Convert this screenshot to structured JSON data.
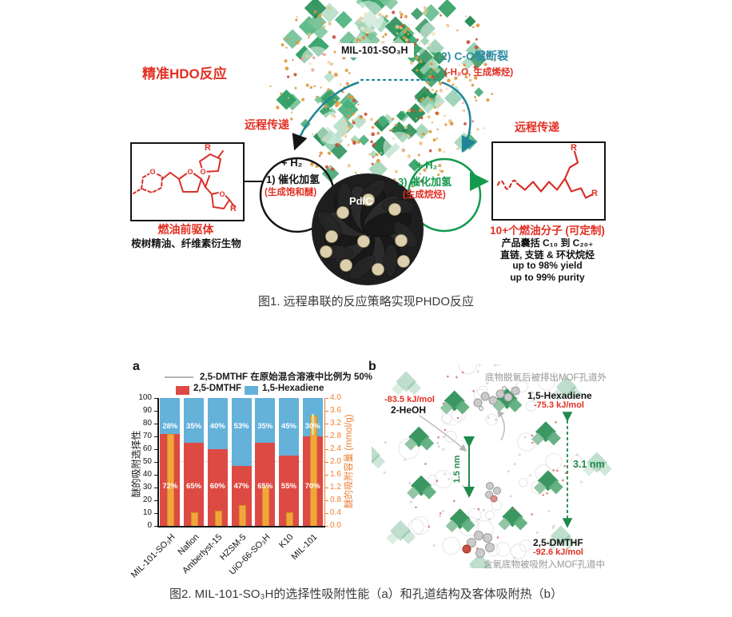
{
  "figure1": {
    "caption": "图1.  远程串联的反应策略实现PHDO反应",
    "labels": {
      "hdo_title": "精准HDO反应",
      "mof_label": "MIL-101-SO₃H",
      "step2_title": "2) C-O键断裂",
      "step2_sub": "(-H₂O, 生成烯烃)",
      "relay_left": "远程传递",
      "relay_right": "远程传递",
      "h2_left": "+ H₂",
      "step1_title": "1) 催化加氢",
      "step1_sub": "(生成饱和醚)",
      "pdc": "Pd/C",
      "h2_right": "+ H₂",
      "step3_title": "3) 催化加氢",
      "step3_sub": "(生成烷烃)",
      "precursor_title": "燃油前驱体",
      "precursor_sub": "桉树精油、纤维素衍生物",
      "product_title": "10+个燃油分子 (可定制)",
      "product_line1": "产品囊括 C₁₀ 到 C₂₀₊",
      "product_line2": "直链, 支链 & 环状烷烃",
      "product_line3": "up to 98% yield",
      "product_line4": "up to 99% purity",
      "r_label": "R",
      "o_atom": "O"
    }
  },
  "figure2": {
    "caption": "图2.  MIL-101-SO₃H的选择性吸附性能（a）和孔道结构及客体吸附热（b）",
    "panel_a_letter": "a",
    "panel_b_letter": "b",
    "panel_b": {
      "top_note": "底物脱氧后被排出MOF孔道外",
      "heoh_energy": "-83.5 kJ/mol",
      "heoh_label": "2-HeOH",
      "hexadiene_label": "1,5-Hexadiene",
      "hexadiene_energy": "-75.3 kJ/mol",
      "pore_size": "1.5 nm",
      "cage_size": "3.1 nm",
      "dmthf_label": "2,5-DMTHF",
      "dmthf_energy": "-92.6 kJ/mol",
      "bottom_note": "含氧底物被吸附入MOF孔道中"
    }
  },
  "chart_data": {
    "type": "bar",
    "title": "",
    "categories": [
      "MIL-101-SO₃H",
      "Nafion",
      "Amberlyst-15",
      "HZSM-5",
      "UiO-66-SO₃H",
      "K10",
      "MIL-101"
    ],
    "series": [
      {
        "name": "2,5-DMTHF",
        "axis": "left",
        "color": "#dd4a44",
        "unit": "%",
        "values": [
          72,
          65,
          60,
          47,
          65,
          55,
          70
        ]
      },
      {
        "name": "1,5-Hexadiene",
        "axis": "left",
        "color": "#64b1da",
        "unit": "%",
        "values": [
          28,
          35,
          40,
          53,
          35,
          45,
          30
        ]
      },
      {
        "name": "醚的吸附容量",
        "axis": "right",
        "color": "#f0a63c",
        "unit": "mmol/g",
        "values": [
          2.88,
          0.42,
          0.48,
          0.64,
          1.24,
          0.42,
          3.45
        ],
        "errors": [
          null,
          null,
          null,
          null,
          null,
          null,
          [
            2.85,
            3.5
          ]
        ]
      }
    ],
    "reference_line": {
      "value": 50,
      "label": "2,5-DMTHF 在原始混合溶液中比例为 50%"
    },
    "legend": [
      "2,5-DMTHF",
      "1,5-Hexadiene"
    ],
    "ylabel_left": "醚的吸附选择性",
    "ylabel_right": "醚的吸附容量 (mmol/g)",
    "ylim_left": [
      0,
      100
    ],
    "ytick_step_left": 10,
    "ylim_right": [
      0,
      4.0
    ],
    "ytick_step_right": 0.4,
    "grid": "dashed reference line at 50 only",
    "legend_position": "top"
  }
}
